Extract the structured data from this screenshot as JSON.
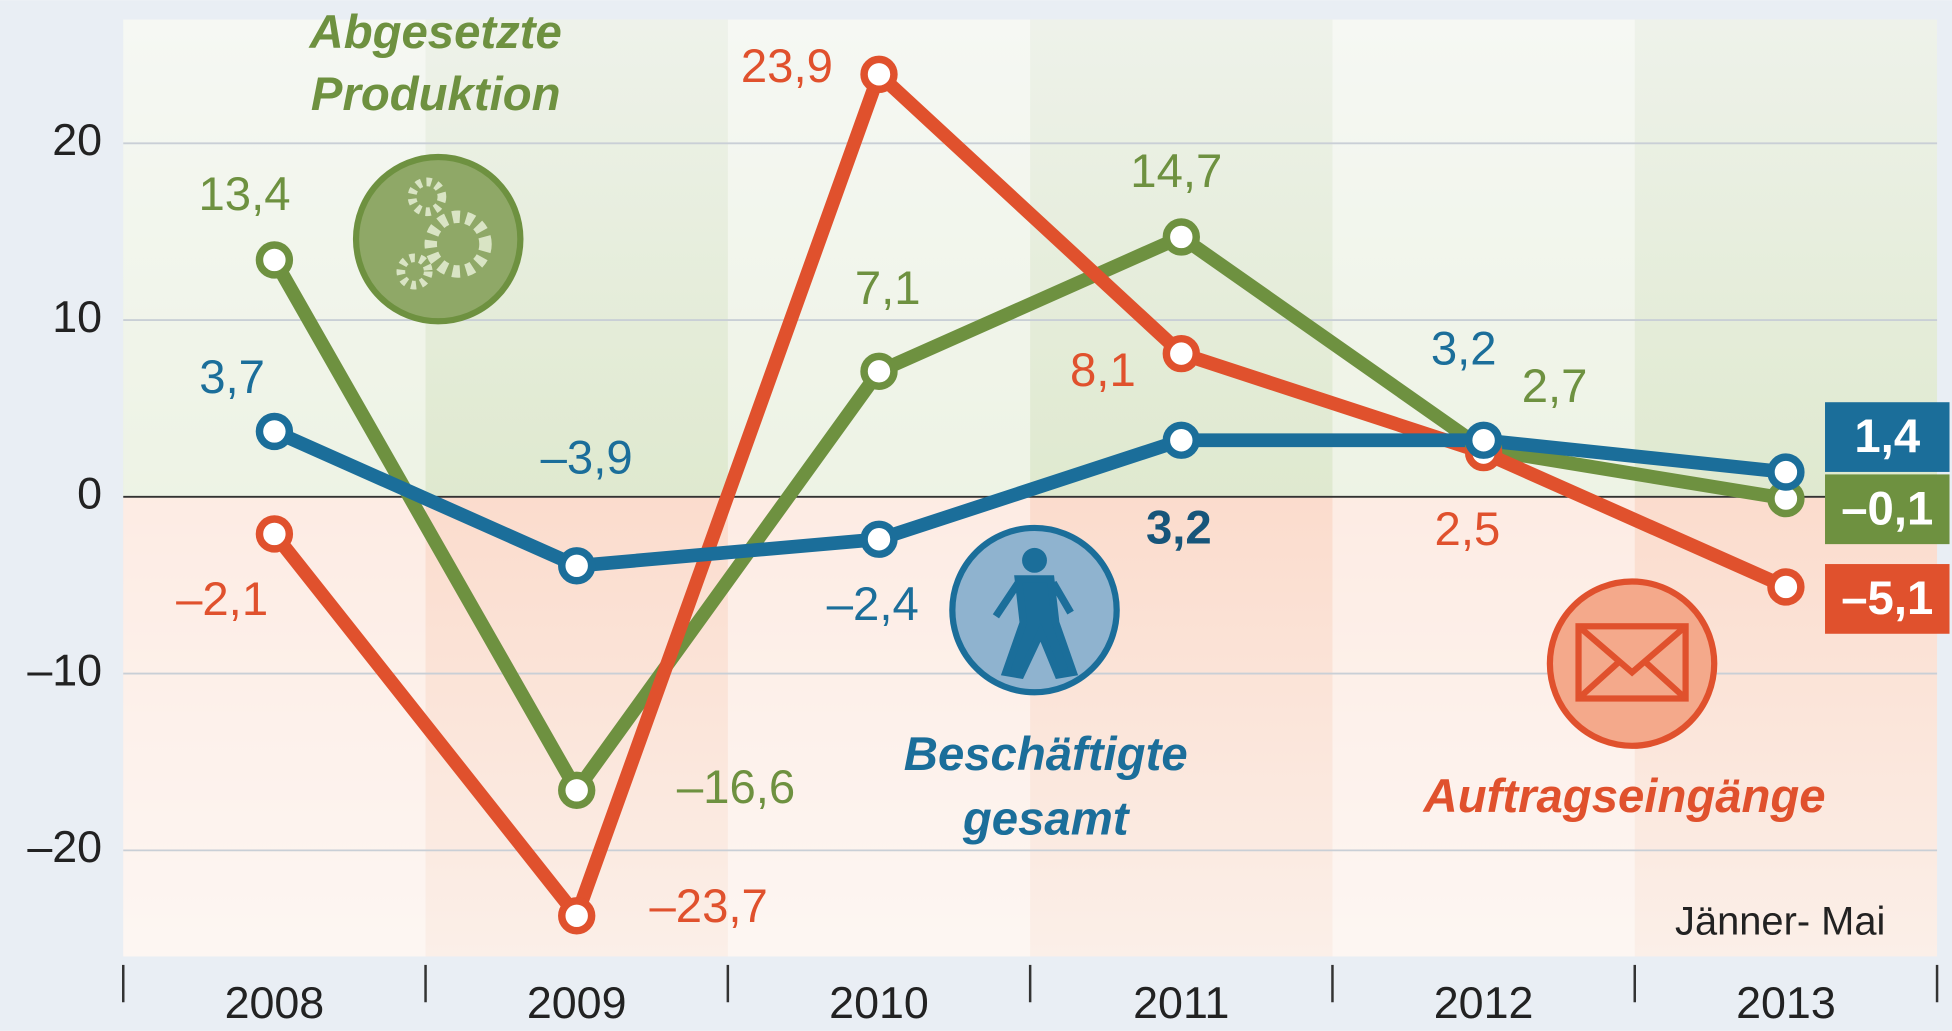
{
  "chart_data": {
    "type": "line",
    "categories": [
      "2008",
      "2009",
      "2010",
      "2011",
      "2012",
      "2013"
    ],
    "series": [
      {
        "name": "Abgesetzte Produktion",
        "color": "#6e9140",
        "values": [
          13.4,
          -16.6,
          7.1,
          14.7,
          2.7,
          -0.1
        ],
        "value_labels": [
          "13,4",
          "–16,6",
          "7,1",
          "14,7",
          "2,7",
          "–0,1"
        ]
      },
      {
        "name": "Beschäftigte gesamt",
        "color": "#1b6e9a",
        "values": [
          3.7,
          -3.9,
          -2.4,
          3.2,
          3.2,
          1.4
        ],
        "value_labels": [
          "3,7",
          "–3,9",
          "–2,4",
          "3,2",
          "3,2",
          "1,4"
        ]
      },
      {
        "name": "Auftragseingänge",
        "color": "#e0512d",
        "values": [
          -2.1,
          -23.7,
          23.9,
          8.1,
          2.5,
          -5.1
        ],
        "value_labels": [
          "–2,1",
          "–23,7",
          "23,9",
          "8,1",
          "2,5",
          "–5,1"
        ]
      }
    ],
    "ylim": [
      -26,
      27
    ],
    "yticks": [
      {
        "value": -20,
        "label": "–20"
      },
      {
        "value": -10,
        "label": "–10"
      },
      0,
      10,
      20
    ],
    "grid": true,
    "annotation": "Jänner- Mai"
  }
}
